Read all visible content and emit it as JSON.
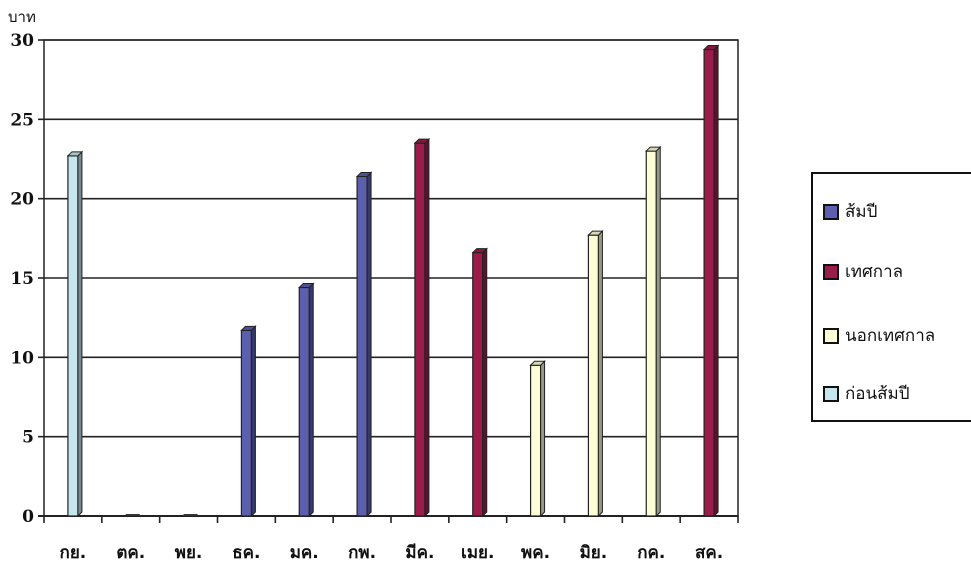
{
  "chart_data": {
    "type": "bar",
    "ylabel": "บาท",
    "ylim": [
      0,
      30
    ],
    "yticks": [
      0,
      5,
      10,
      15,
      20,
      25,
      30
    ],
    "grid": true,
    "legend_position": "right",
    "categories": [
      "กย.",
      "ตค.",
      "พย.",
      "ธค.",
      "มค.",
      "กพ.",
      "มีค.",
      "เมย.",
      "พค.",
      "มิย.",
      "กค.",
      "สค."
    ],
    "series": [
      {
        "name": "ส้มปี",
        "color": "#5b5fae",
        "values": [
          null,
          0,
          0,
          11.7,
          14.4,
          21.4,
          null,
          null,
          null,
          null,
          null,
          null
        ]
      },
      {
        "name": "เทศกาล",
        "color": "#9b1c4a",
        "values": [
          null,
          null,
          null,
          null,
          null,
          null,
          23.5,
          16.6,
          null,
          null,
          null,
          29.4
        ]
      },
      {
        "name": "นอกเทศกาล",
        "color": "#fdfdd6",
        "values": [
          null,
          null,
          null,
          null,
          null,
          null,
          null,
          null,
          9.5,
          17.7,
          23.0,
          null
        ]
      },
      {
        "name": "ก่อนส้มปี",
        "color": "#c6e6ee",
        "values": [
          22.7,
          null,
          null,
          null,
          null,
          null,
          null,
          null,
          null,
          null,
          null,
          null
        ]
      }
    ]
  }
}
